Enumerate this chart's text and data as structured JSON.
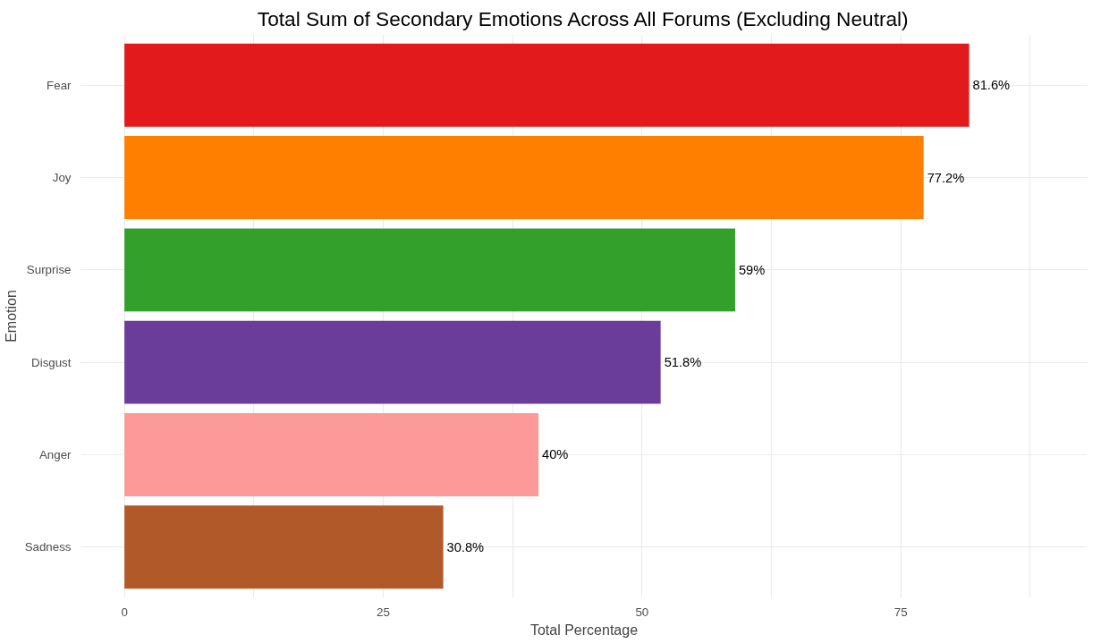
{
  "chart_data": {
    "type": "bar",
    "orientation": "horizontal",
    "title": "Total Sum of Secondary Emotions Across All Forums (Excluding Neutral)",
    "xlabel": "Total Percentage",
    "ylabel": "Emotion",
    "categories": [
      "Fear",
      "Joy",
      "Surprise",
      "Disgust",
      "Anger",
      "Sadness"
    ],
    "values": [
      81.6,
      77.2,
      59,
      51.8,
      40,
      30.8
    ],
    "colors": [
      "#e31a1c",
      "#ff7f00",
      "#33a02c",
      "#6a3d9a",
      "#fb9a99",
      "#b15928"
    ],
    "value_labels": [
      "81.6%",
      "77.2%",
      "59%",
      "51.8%",
      "40%",
      "30.8%"
    ],
    "xlim": [
      -4.2,
      93
    ],
    "xticks": [
      0,
      {
        "value": 12.5,
        "label": null
      },
      25,
      {
        "value": 37.5,
        "label": null
      },
      50,
      {
        "value": 62.5,
        "label": null
      },
      75,
      {
        "value": 87.5,
        "label": null
      }
    ],
    "grid": true
  }
}
